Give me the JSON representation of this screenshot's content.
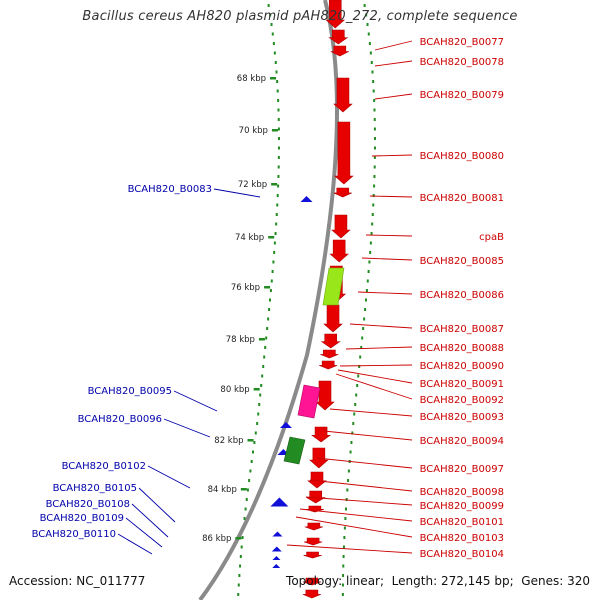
{
  "title": "Bacillus cereus AH820 plasmid pAH820_272, complete sequence",
  "footer": {
    "accession_label": "Accession:",
    "accession": "NC_011777",
    "topology_label": "Topology:",
    "topology": "linear",
    "length_label": "Length:",
    "length": "272,145 bp",
    "genes_label": "Genes:",
    "genes": "320"
  },
  "colors": {
    "forward_gene": "#e60000",
    "reverse_gene": "#1010d8",
    "forward_label": "#cc0000",
    "reverse_label": "#0000aa",
    "backbone": "#8a8a8a",
    "tick": "#228b22",
    "lime_feature": "#99e61a",
    "pink_feature": "#ff1493",
    "green_feature": "#228b22"
  },
  "scale_ticks": [
    "68 kbp",
    "70 kbp",
    "72 kbp",
    "74 kbp",
    "76 kbp",
    "78 kbp",
    "80 kbp",
    "82 kbp",
    "84 kbp",
    "86 kbp"
  ],
  "forward_labels": [
    "BCAH820_B0077",
    "BCAH820_B0078",
    "BCAH820_B0079",
    "BCAH820_B0080",
    "BCAH820_B0081",
    "cpaB",
    "BCAH820_B0085",
    "BCAH820_B0086",
    "BCAH820_B0087",
    "BCAH820_B0088",
    "BCAH820_B0090",
    "BCAH820_B0091",
    "BCAH820_B0092",
    "BCAH820_B0093",
    "BCAH820_B0094",
    "BCAH820_B0097",
    "BCAH820_B0098",
    "BCAH820_B0099",
    "BCAH820_B0101",
    "BCAH820_B0103",
    "BCAH820_B0104"
  ],
  "reverse_labels": [
    "BCAH820_B0083",
    "BCAH820_B0095",
    "BCAH820_B0096",
    "BCAH820_B0102",
    "BCAH820_B0105",
    "BCAH820_B0108",
    "BCAH820_B0109",
    "BCAH820_B0110"
  ]
}
